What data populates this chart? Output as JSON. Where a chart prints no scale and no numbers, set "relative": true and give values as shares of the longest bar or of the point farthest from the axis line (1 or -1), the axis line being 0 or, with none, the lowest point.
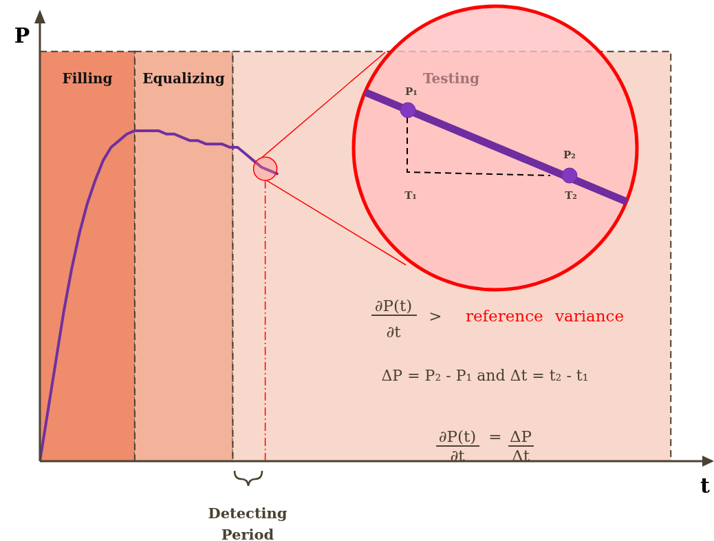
{
  "chart_data": {
    "type": "line",
    "relative": true,
    "xlabel": "t",
    "ylabel": "P",
    "categories": [
      null,
      null,
      null,
      null,
      null,
      null,
      null,
      null,
      null,
      null,
      null,
      null,
      null,
      null,
      null,
      null,
      null,
      null,
      null,
      null,
      null,
      null,
      null,
      null,
      null,
      null,
      null,
      null,
      null,
      null,
      null,
      null,
      null,
      null,
      null,
      null,
      null,
      null,
      null,
      null,
      null,
      null,
      null,
      null,
      null,
      null,
      null,
      null,
      null,
      null,
      null,
      null,
      null,
      null,
      null,
      null,
      null,
      null,
      null,
      null,
      null,
      null,
      null,
      null,
      null,
      null,
      null,
      null,
      null,
      null,
      null,
      null,
      null,
      null,
      null,
      null,
      null,
      null,
      null,
      null,
      null,
      null,
      null,
      null,
      null,
      null
    ],
    "series": [
      {
        "color": "#7030a0",
        "values": [
          0,
          0.15,
          0.3,
          0.45,
          0.58,
          0.69,
          0.78,
          0.85,
          0.91,
          0.95,
          0.97,
          0.99,
          1,
          1,
          1,
          1,
          0.99,
          0.99,
          0.98,
          0.97,
          0.97,
          0.96,
          0.96,
          0.96,
          0.95,
          0.95,
          0.93,
          0.91,
          0.89,
          0.88,
          0.87,
          null,
          null,
          null,
          null,
          null,
          null,
          null,
          null,
          null,
          null,
          null,
          null,
          null,
          null,
          null,
          null,
          null,
          null,
          null,
          null,
          null,
          null,
          null,
          null,
          null,
          null,
          null,
          null,
          null,
          null,
          null,
          null,
          null,
          null,
          null,
          null,
          null,
          null,
          null,
          null,
          null,
          null,
          null,
          null,
          null,
          null,
          null,
          null,
          null,
          null,
          null,
          null,
          null,
          null,
          null
        ]
      }
    ],
    "annotations": [
      "Detecting Period",
      "P₁",
      "P₂",
      "T₁",
      "T₂",
      "∂P(t)",
      "∂t",
      ">",
      "reference variance",
      "ΔP = P₂ - P₁ and Δt = t₂ - t₁",
      "∂P(t)",
      "∂t",
      "=",
      "ΔP",
      "Δt",
      "Filling",
      "Equalizing",
      "Testing"
    ],
    "grid": false,
    "legend": false,
    "marker": "none"
  }
}
